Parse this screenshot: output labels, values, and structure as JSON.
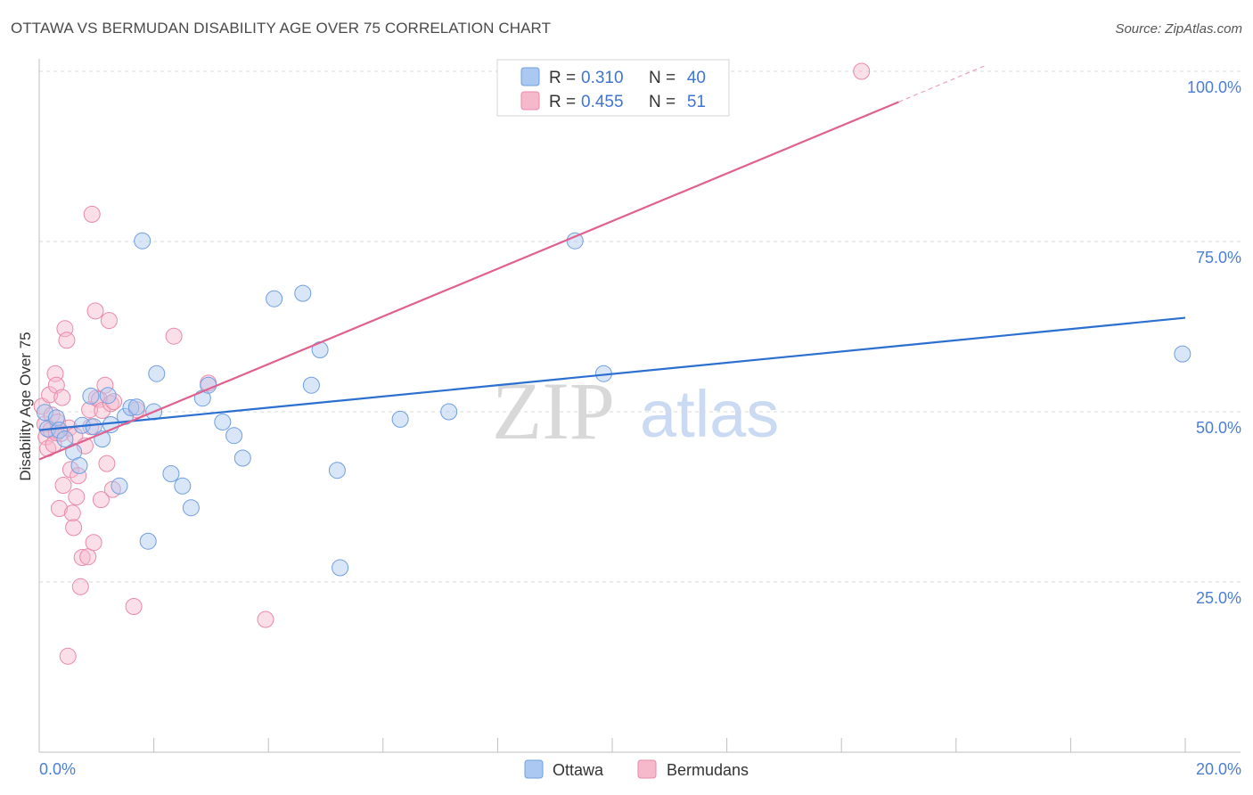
{
  "header": {
    "title": "OTTAWA VS BERMUDAN DISABILITY AGE OVER 75 CORRELATION CHART",
    "source": "Source: ZipAtlas.com"
  },
  "watermark": {
    "zip": "ZIP",
    "atlas": "atlas"
  },
  "legend": {
    "ottawa": {
      "r_label": "R =",
      "r_value": "0.310",
      "n_label": "N =",
      "n_value": "40"
    },
    "bermudans": {
      "r_label": "R =",
      "r_value": "0.455",
      "n_label": "N =",
      "n_value": "51"
    }
  },
  "bottom_legend": {
    "ottawa": "Ottawa",
    "bermudans": "Bermudans"
  },
  "colors": {
    "ottawa_fill": "#aac8f0",
    "ottawa_stroke": "#6f9fe0",
    "ottawa_line": "#2b6fd0",
    "bermudans_fill": "#f6b9cb",
    "bermudans_stroke": "#e98aa8",
    "bermudans_line": "#e0608e",
    "tick_text": "#4a7ed6",
    "grid": "#d9d9d9"
  },
  "chart_data": {
    "type": "scatter",
    "xlabel": "",
    "ylabel": "Disability Age Over 75",
    "xlim": [
      0,
      20
    ],
    "ylim": [
      5,
      102
    ],
    "x_ticks": [
      0,
      2,
      4,
      6,
      8,
      10,
      12,
      14,
      16,
      18,
      20
    ],
    "x_tick_labels": [
      {
        "value": 0,
        "label": "0.0%"
      },
      {
        "value": 20,
        "label": "20.0%"
      }
    ],
    "y_ticks": [
      {
        "value": 25,
        "label": "25.0%"
      },
      {
        "value": 50,
        "label": "50.0%"
      },
      {
        "value": 75,
        "label": "75.0%"
      },
      {
        "value": 100,
        "label": "100.0%"
      }
    ],
    "grid": true,
    "legend_position": "top-center",
    "series": [
      {
        "name": "Ottawa",
        "r": 0.31,
        "n": 40,
        "trend": {
          "x": [
            0,
            20
          ],
          "y": [
            47.3,
            63.8
          ]
        },
        "points": [
          [
            0.1,
            49.9
          ],
          [
            0.15,
            47.5
          ],
          [
            0.3,
            49.1
          ],
          [
            0.35,
            47.3
          ],
          [
            0.45,
            46.0
          ],
          [
            0.6,
            44.1
          ],
          [
            0.7,
            42.1
          ],
          [
            0.75,
            48.0
          ],
          [
            0.9,
            52.3
          ],
          [
            0.95,
            47.8
          ],
          [
            1.1,
            46.0
          ],
          [
            1.2,
            52.4
          ],
          [
            1.25,
            48.1
          ],
          [
            1.4,
            39.1
          ],
          [
            1.5,
            49.3
          ],
          [
            1.6,
            50.6
          ],
          [
            1.7,
            50.7
          ],
          [
            1.8,
            75.1
          ],
          [
            1.9,
            31.0
          ],
          [
            2.0,
            50.0
          ],
          [
            2.05,
            55.6
          ],
          [
            2.3,
            40.9
          ],
          [
            2.5,
            39.1
          ],
          [
            2.65,
            35.9
          ],
          [
            2.85,
            52.0
          ],
          [
            2.95,
            53.9
          ],
          [
            3.2,
            48.5
          ],
          [
            3.4,
            46.5
          ],
          [
            3.55,
            43.2
          ],
          [
            4.1,
            66.6
          ],
          [
            4.6,
            67.4
          ],
          [
            4.75,
            53.9
          ],
          [
            4.9,
            59.1
          ],
          [
            5.2,
            41.4
          ],
          [
            5.25,
            27.1
          ],
          [
            6.3,
            48.9
          ],
          [
            7.15,
            50.0
          ],
          [
            9.35,
            75.1
          ],
          [
            9.85,
            55.6
          ],
          [
            19.95,
            58.5
          ]
        ]
      },
      {
        "name": "Bermudans",
        "r": 0.455,
        "n": 51,
        "trend": {
          "x": [
            0,
            15
          ],
          "y": [
            43.0,
            95.5
          ]
        },
        "trend_extension": {
          "x": [
            15,
            16.5
          ],
          "y": [
            95.5,
            100.8
          ]
        },
        "points": [
          [
            0.05,
            50.8
          ],
          [
            0.1,
            48.2
          ],
          [
            0.12,
            46.3
          ],
          [
            0.15,
            44.6
          ],
          [
            0.18,
            52.5
          ],
          [
            0.2,
            47.3
          ],
          [
            0.22,
            49.5
          ],
          [
            0.25,
            45.2
          ],
          [
            0.28,
            55.6
          ],
          [
            0.3,
            53.9
          ],
          [
            0.32,
            48.5
          ],
          [
            0.35,
            35.8
          ],
          [
            0.38,
            46.8
          ],
          [
            0.4,
            52.1
          ],
          [
            0.42,
            39.2
          ],
          [
            0.45,
            62.2
          ],
          [
            0.48,
            60.5
          ],
          [
            0.5,
            14.1
          ],
          [
            0.52,
            47.6
          ],
          [
            0.55,
            41.5
          ],
          [
            0.58,
            35.1
          ],
          [
            0.6,
            33.0
          ],
          [
            0.62,
            46.5
          ],
          [
            0.65,
            37.5
          ],
          [
            0.68,
            40.6
          ],
          [
            0.72,
            24.3
          ],
          [
            0.75,
            28.6
          ],
          [
            0.8,
            45.0
          ],
          [
            0.85,
            28.7
          ],
          [
            0.88,
            50.3
          ],
          [
            0.9,
            47.8
          ],
          [
            0.92,
            79.0
          ],
          [
            0.95,
            30.8
          ],
          [
            0.98,
            64.8
          ],
          [
            1.0,
            52.0
          ],
          [
            1.05,
            51.8
          ],
          [
            1.08,
            37.1
          ],
          [
            1.1,
            50.2
          ],
          [
            1.15,
            53.9
          ],
          [
            1.18,
            42.4
          ],
          [
            1.22,
            63.4
          ],
          [
            1.25,
            51.2
          ],
          [
            1.28,
            38.6
          ],
          [
            1.3,
            51.5
          ],
          [
            1.65,
            21.4
          ],
          [
            1.7,
            50.3
          ],
          [
            2.35,
            61.1
          ],
          [
            2.95,
            54.2
          ],
          [
            3.95,
            19.5
          ],
          [
            14.35,
            100.0
          ],
          [
            0.3,
            46.9
          ]
        ]
      }
    ]
  }
}
